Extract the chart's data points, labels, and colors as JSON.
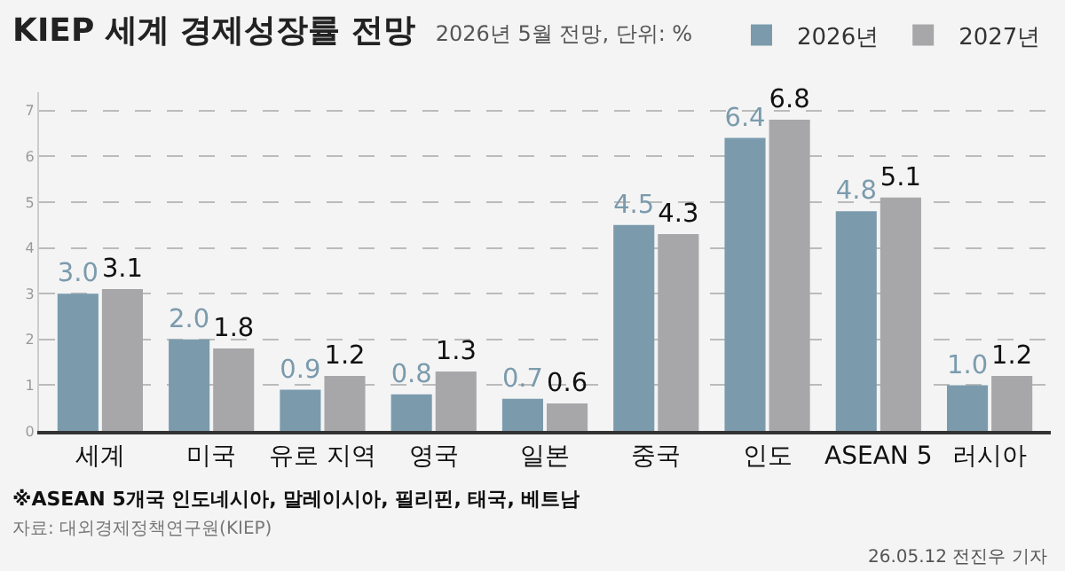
{
  "chart_data": {
    "type": "bar",
    "title": "KIEP 세계 경제성장률 전망",
    "subtitle": "2026년 5월 전망, 단위: %",
    "categories": [
      "세계",
      "미국",
      "유로 지역",
      "영국",
      "일본",
      "중국",
      "인도",
      "ASEAN 5",
      "러시아"
    ],
    "series": [
      {
        "name": "2026년",
        "color": "#7b9bad",
        "values": [
          3.0,
          2.0,
          0.9,
          0.8,
          0.7,
          4.5,
          6.4,
          4.8,
          1.0
        ],
        "value_labels": [
          "3.0",
          "2.0",
          "0.9",
          "0.8",
          "0.7",
          "4.5",
          "6.4",
          "4.8",
          "1.0"
        ]
      },
      {
        "name": "2027년",
        "color": "#a7a7a9",
        "values": [
          3.1,
          1.8,
          1.2,
          1.3,
          0.6,
          4.3,
          6.8,
          5.1,
          1.2
        ],
        "value_labels": [
          "3.1",
          "1.8",
          "1.2",
          "1.3",
          "0.6",
          "4.3",
          "6.8",
          "5.1",
          "1.2"
        ]
      }
    ],
    "ylim": [
      0,
      7.4
    ],
    "yticks": [
      0,
      1,
      2,
      3,
      4,
      5,
      6,
      7
    ],
    "grid": "y",
    "legend": "top right",
    "annotations": [
      "※ASEAN 5개국 인도네시아, 말레이시아, 필리핀, 태국, 베트남",
      "자료: 대외경제정책연구원(KIEP)",
      "26.05.12 전진우 기자"
    ]
  }
}
